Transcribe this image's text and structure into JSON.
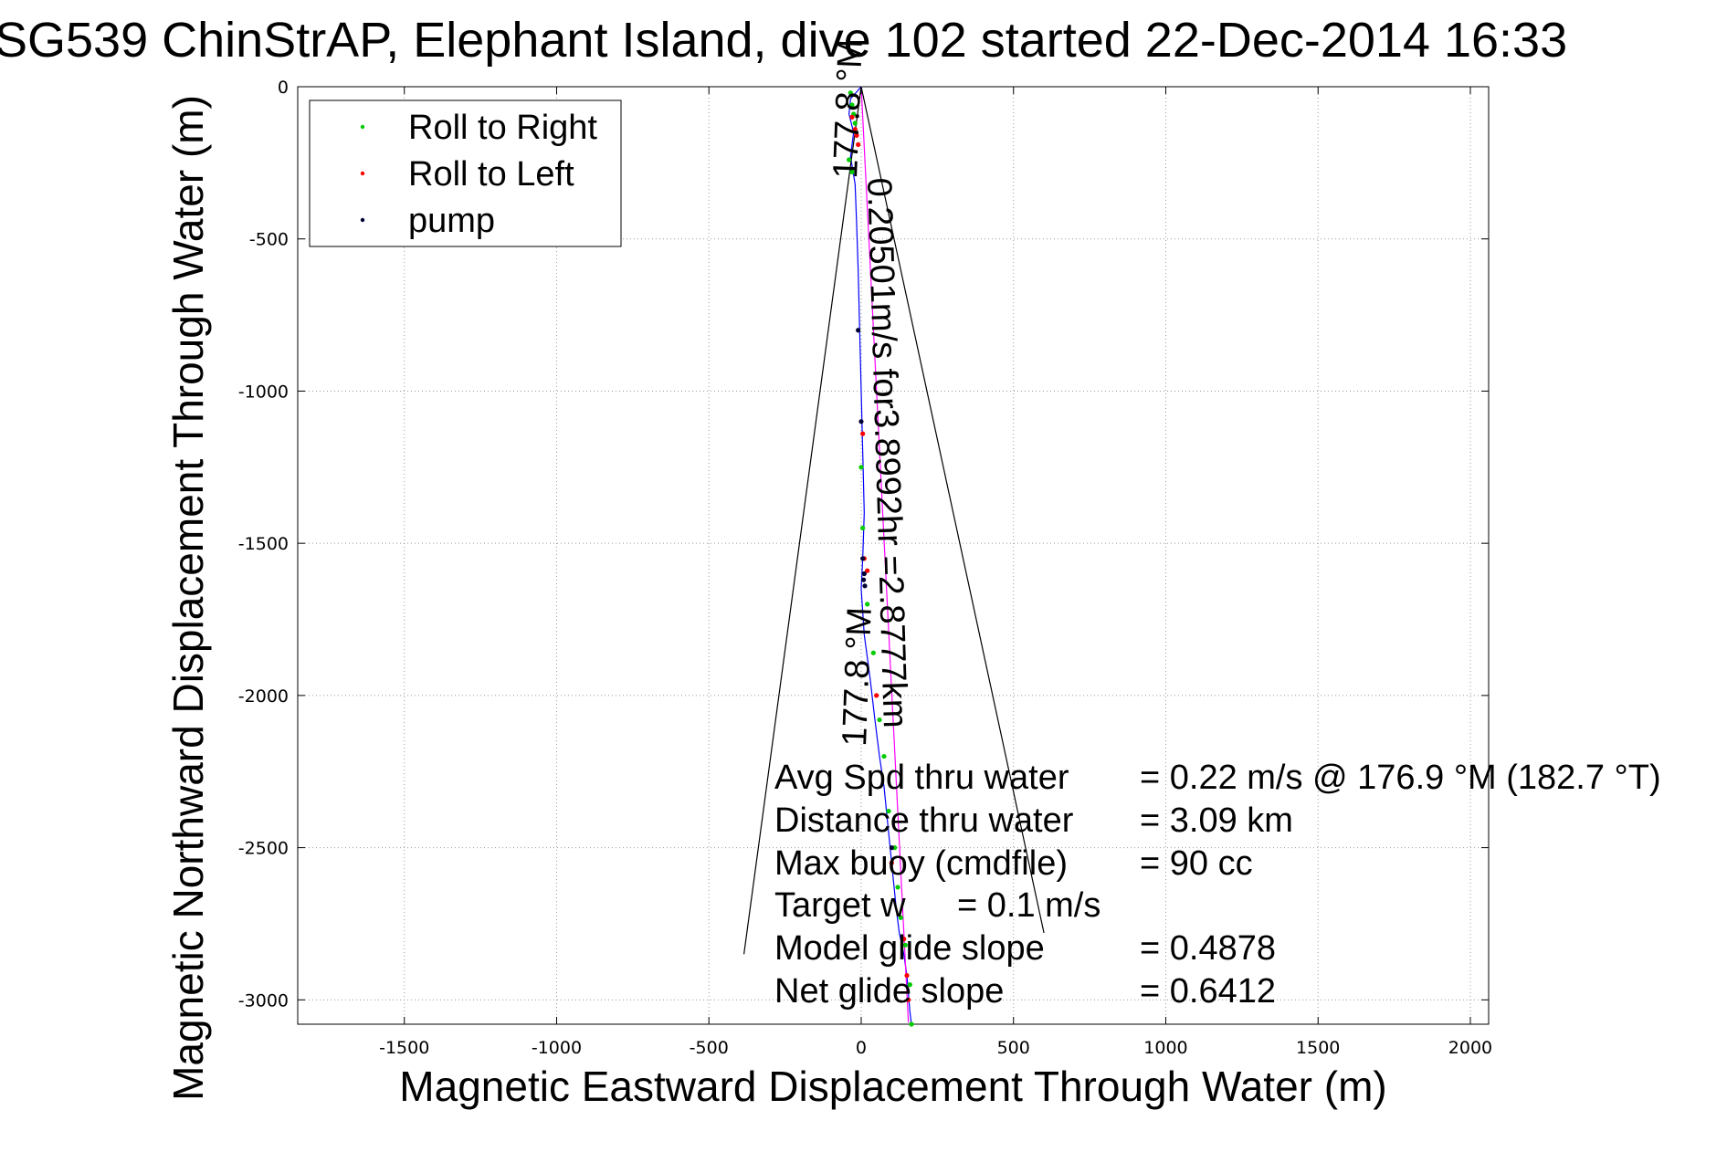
{
  "chart_data": {
    "type": "scatter",
    "title": "SG539 ChinStrAP, Elephant Island, dive 102 started 22-Dec-2014 16:33",
    "xlabel": "Magnetic Eastward Displacement Through Water (m)",
    "ylabel": "Magnetic Northward Displacement Through Water (m)",
    "xlim": [
      -1850,
      2060
    ],
    "ylim": [
      -3080,
      0
    ],
    "xticks": [
      -1500,
      -1000,
      -500,
      0,
      500,
      1000,
      1500,
      2000
    ],
    "xtick_labels": [
      "-1500",
      "-1000",
      "-500",
      "0",
      "500",
      "1000",
      "1500",
      "2000"
    ],
    "yticks": [
      0,
      -500,
      -1000,
      -1500,
      -2000,
      -2500,
      -3000
    ],
    "ytick_labels": [
      "0",
      "-500",
      "-1000",
      "-1500",
      "-2000",
      "-2500",
      "-3000"
    ],
    "grid": true,
    "legend_position": "top-left",
    "series": [
      {
        "name": "Roll to Right",
        "color": "#00cc00",
        "marker": "point",
        "x": [
          -35,
          -30,
          -25,
          -20,
          -40,
          -30,
          0,
          5,
          20,
          40,
          60,
          75,
          90,
          110,
          120,
          130,
          145,
          160,
          165
        ],
        "y": [
          -20,
          -60,
          -90,
          -120,
          -240,
          -280,
          -1250,
          -1450,
          -1700,
          -1860,
          -2080,
          -2200,
          -2380,
          -2500,
          -2630,
          -2730,
          -2820,
          -2950,
          -3080
        ]
      },
      {
        "name": "Roll to Left",
        "color": "#ff0000",
        "marker": "point",
        "x": [
          -30,
          -20,
          -15,
          -10,
          5,
          10,
          20,
          50,
          100,
          140,
          150,
          155
        ],
        "y": [
          -100,
          -140,
          -160,
          -190,
          -1140,
          -1550,
          -1590,
          -2000,
          -2550,
          -2800,
          -2920,
          -3000
        ]
      },
      {
        "name": "pump",
        "color": "#000033",
        "marker": "point",
        "x": [
          -10,
          0,
          5,
          10,
          8,
          12,
          100
        ],
        "y": [
          -800,
          -1100,
          -1550,
          -1600,
          -1620,
          -1640,
          -2500
        ]
      }
    ],
    "lines": [
      {
        "role": "track-through-water",
        "color": "#0000ff",
        "x": [
          0,
          -35,
          -40,
          -25,
          -35,
          -20,
          -15,
          -10,
          -5,
          0,
          5,
          10,
          5,
          0,
          10,
          30,
          45,
          60,
          75,
          85,
          95,
          105,
          115,
          125,
          140,
          150,
          155,
          160,
          165
        ],
        "y": [
          0,
          -40,
          -90,
          -150,
          -230,
          -320,
          -450,
          -600,
          -800,
          -1000,
          -1200,
          -1400,
          -1550,
          -1650,
          -1800,
          -1950,
          -2080,
          -2200,
          -2300,
          -2400,
          -2500,
          -2600,
          -2700,
          -2780,
          -2850,
          -2920,
          -2980,
          -3040,
          -3080
        ]
      },
      {
        "role": "net-displacement",
        "color": "#ff00ff",
        "x": [
          0,
          155
        ],
        "y": [
          0,
          -3075
        ]
      },
      {
        "role": "wedge-left",
        "color": "#000000",
        "x": [
          -385,
          0,
          600
        ],
        "y": [
          -2850,
          0,
          -2780
        ]
      }
    ],
    "annotations": {
      "along_track": "0.20501m/s for3.8992hr =2.8777km",
      "heading_top": "177.8 °M",
      "heading_bottom": "177.8 °M",
      "stats": [
        {
          "label": "Avg Spd thru water",
          "value": "=  0.22 m/s @ 176.9 °M (182.7 °T)"
        },
        {
          "label": "Distance thru water",
          "value": "=  3.09 km"
        },
        {
          "label": "Max buoy (cmdfile)",
          "value": "= 90 cc"
        },
        {
          "label": "Target w",
          "value": "= 0.1  m/s"
        },
        {
          "label": "Model glide slope",
          "value": "= 0.4878"
        },
        {
          "label": "Net glide slope",
          "value": "= 0.6412"
        }
      ]
    }
  }
}
